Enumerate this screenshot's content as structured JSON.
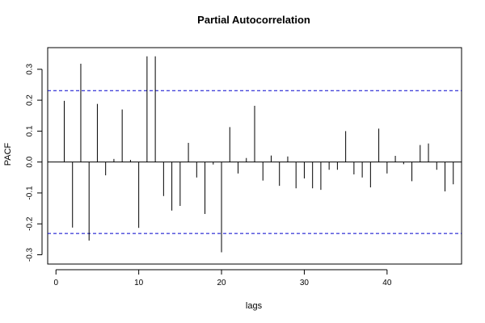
{
  "chart_data": {
    "type": "bar",
    "title": "Partial Autocorrelation",
    "xlabel": "lags",
    "ylabel": "PACF",
    "xlim": [
      -1,
      49
    ],
    "ylim": [
      -0.33,
      0.37
    ],
    "x_ticks": [
      0,
      10,
      20,
      30,
      40
    ],
    "y_ticks": [
      -0.3,
      -0.2,
      -0.1,
      0.0,
      0.1,
      0.2,
      0.3
    ],
    "x_tick_labels": [
      "0",
      "10",
      "20",
      "30",
      "40"
    ],
    "y_tick_labels": [
      "-0.3",
      "-0.2",
      "-0.1",
      "0.0",
      "0.1",
      "0.2",
      "0.3"
    ],
    "confidence_bound": 0.231,
    "confidence_color": "#0000cc",
    "series": [
      {
        "lags": [
          1,
          2,
          3,
          4,
          5,
          6,
          7,
          8,
          9,
          10,
          11,
          12,
          13,
          14,
          15,
          16,
          17,
          18,
          19,
          20,
          21,
          22,
          23,
          24,
          25,
          26,
          27,
          28,
          29,
          30,
          31,
          32,
          33,
          34,
          35,
          36,
          37,
          38,
          39,
          40,
          41,
          42,
          43,
          44,
          45,
          46,
          47,
          48
        ],
        "values": [
          0.198,
          -0.212,
          0.318,
          -0.254,
          0.188,
          -0.043,
          0.01,
          0.17,
          0.007,
          -0.213,
          0.342,
          0.342,
          -0.11,
          -0.157,
          -0.142,
          0.062,
          -0.05,
          -0.168,
          -0.008,
          -0.292,
          0.113,
          -0.037,
          0.013,
          0.182,
          -0.06,
          0.021,
          -0.077,
          0.018,
          -0.085,
          -0.053,
          -0.085,
          -0.09,
          -0.025,
          -0.025,
          0.1,
          -0.04,
          -0.05,
          -0.082,
          0.108,
          -0.037,
          0.02,
          -0.007,
          -0.062,
          0.055,
          0.06,
          -0.025,
          -0.095,
          -0.072
        ]
      }
    ]
  }
}
